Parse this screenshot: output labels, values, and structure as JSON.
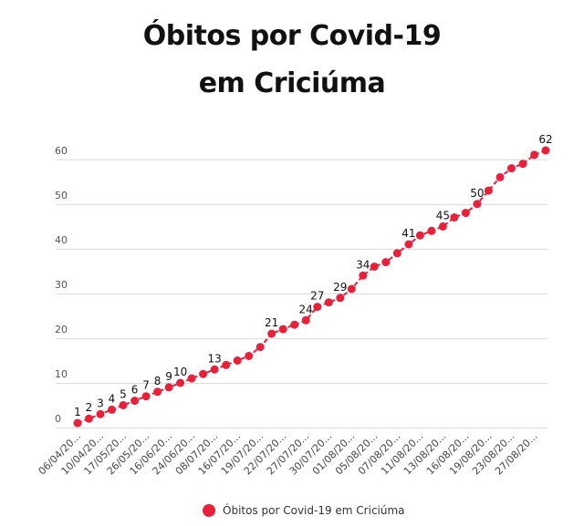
{
  "chart_data": {
    "type": "line",
    "title_lines": [
      "Óbitos por Covid-19",
      "em Criciúma"
    ],
    "xlabel": "",
    "ylabel": "",
    "ylim": [
      0,
      62
    ],
    "yticks": [
      0,
      10,
      20,
      30,
      40,
      50,
      60
    ],
    "xtick_labels": [
      "06/04/20...",
      "10/04/20...",
      "17/05/20...",
      "26/05/20...",
      "16/06/20...",
      "24/06/20...",
      "08/07/20...",
      "16/07/20...",
      "19/07/20...",
      "22/07/20...",
      "27/07/20...",
      "30/07/20...",
      "01/08/20...",
      "05/08/20...",
      "07/08/20...",
      "11/08/20...",
      "13/08/20...",
      "16/08/20...",
      "19/08/20...",
      "23/08/20...",
      "27/08/20..."
    ],
    "labeled_points": [
      1,
      2,
      3,
      4,
      5,
      6,
      7,
      8,
      9,
      10,
      13,
      21,
      24,
      27,
      29,
      34,
      41,
      45,
      50,
      62
    ],
    "grid": true,
    "legend_position": "bottom",
    "series": [
      {
        "name": "Óbitos por Covid-19 em Criciúma",
        "color": "#e8203a",
        "values": [
          1,
          2,
          3,
          4,
          5,
          6,
          7,
          8,
          9,
          10,
          11,
          12,
          13,
          14,
          15,
          16,
          18,
          21,
          22,
          23,
          24,
          27,
          28,
          29,
          31,
          34,
          36,
          37,
          39,
          41,
          43,
          44,
          45,
          47,
          48,
          50,
          53,
          56,
          58,
          59,
          61,
          62
        ]
      }
    ]
  }
}
